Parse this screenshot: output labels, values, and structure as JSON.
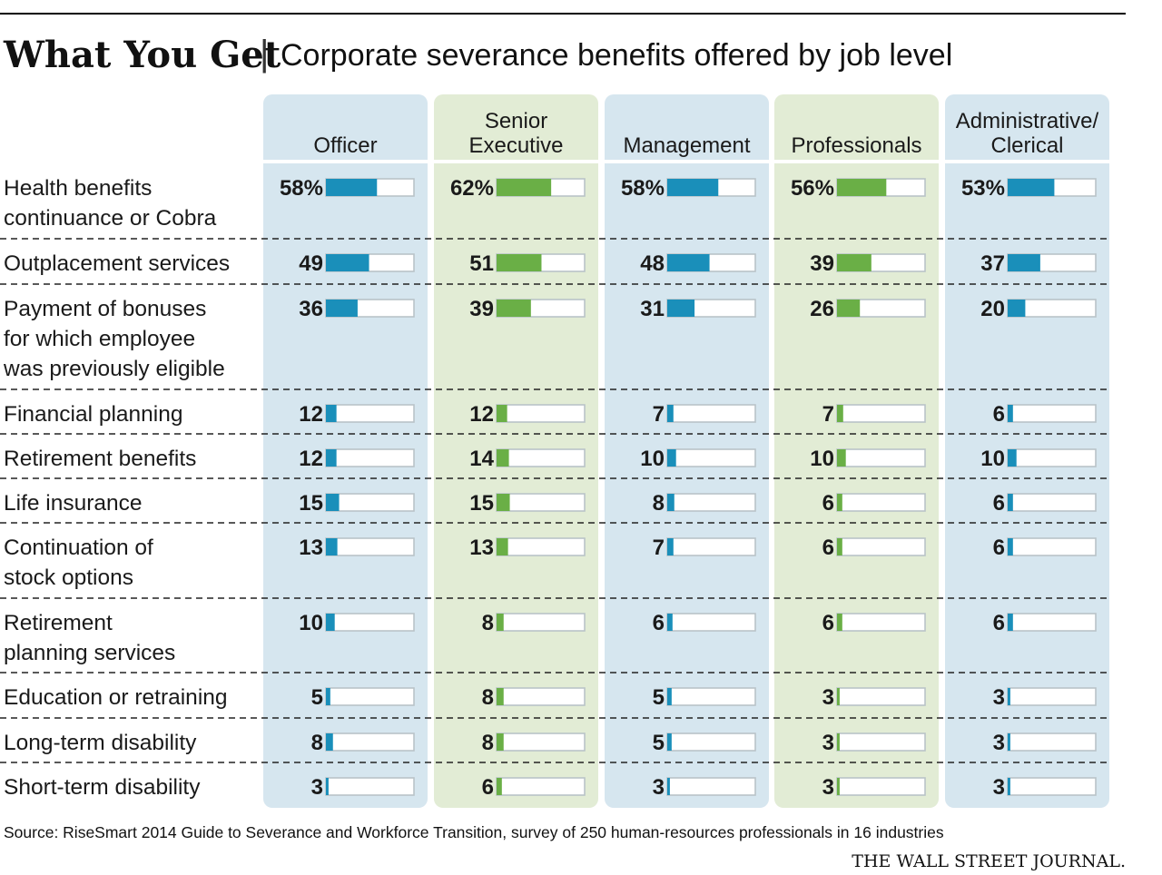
{
  "header": {
    "title": "What You Get",
    "separator": "|",
    "subtitle": "Corporate severance benefits offered by job level"
  },
  "chart_data": {
    "type": "table",
    "title": "What You Get",
    "subtitle": "Corporate severance benefits offered by job level",
    "unit": "%",
    "value_range": [
      0,
      100
    ],
    "columns": [
      {
        "name_lines": [
          "Officer"
        ],
        "color": "#1a8fba",
        "background": "#d6e6ef"
      },
      {
        "name_lines": [
          "Senior",
          "Executive"
        ],
        "color": "#6aaf46",
        "background": "#e2ecd5"
      },
      {
        "name_lines": [
          "Management"
        ],
        "color": "#1a8fba",
        "background": "#d6e6ef"
      },
      {
        "name_lines": [
          "Professionals"
        ],
        "color": "#6aaf46",
        "background": "#e2ecd5"
      },
      {
        "name_lines": [
          "Administrative/",
          "Clerical"
        ],
        "color": "#1a8fba",
        "background": "#d6e6ef"
      }
    ],
    "rows": [
      {
        "label_lines": [
          "Health benefits",
          "continuance or Cobra"
        ],
        "values": [
          58,
          62,
          58,
          56,
          53
        ],
        "value_labels": [
          "58%",
          "62%",
          "58%",
          "56%",
          "53%"
        ]
      },
      {
        "label_lines": [
          "Outplacement services"
        ],
        "values": [
          49,
          51,
          48,
          39,
          37
        ],
        "value_labels": [
          "49",
          "51",
          "48",
          "39",
          "37"
        ]
      },
      {
        "label_lines": [
          "Payment of bonuses",
          "for which employee",
          "was previously eligible"
        ],
        "values": [
          36,
          39,
          31,
          26,
          20
        ],
        "value_labels": [
          "36",
          "39",
          "31",
          "26",
          "20"
        ]
      },
      {
        "label_lines": [
          "Financial planning"
        ],
        "values": [
          12,
          12,
          7,
          7,
          6
        ],
        "value_labels": [
          "12",
          "12",
          "7",
          "7",
          "6"
        ]
      },
      {
        "label_lines": [
          "Retirement benefits"
        ],
        "values": [
          12,
          14,
          10,
          10,
          10
        ],
        "value_labels": [
          "12",
          "14",
          "10",
          "10",
          "10"
        ]
      },
      {
        "label_lines": [
          "Life insurance"
        ],
        "values": [
          15,
          15,
          8,
          6,
          6
        ],
        "value_labels": [
          "15",
          "15",
          "8",
          "6",
          "6"
        ]
      },
      {
        "label_lines": [
          "Continuation of",
          "stock options"
        ],
        "values": [
          13,
          13,
          7,
          6,
          6
        ],
        "value_labels": [
          "13",
          "13",
          "7",
          "6",
          "6"
        ]
      },
      {
        "label_lines": [
          "Retirement",
          "planning services"
        ],
        "values": [
          10,
          8,
          6,
          6,
          6
        ],
        "value_labels": [
          "10",
          "8",
          "6",
          "6",
          "6"
        ]
      },
      {
        "label_lines": [
          "Education or retraining"
        ],
        "values": [
          5,
          8,
          5,
          3,
          3
        ],
        "value_labels": [
          "5",
          "8",
          "5",
          "3",
          "3"
        ]
      },
      {
        "label_lines": [
          "Long-term disability"
        ],
        "values": [
          8,
          8,
          5,
          3,
          3
        ],
        "value_labels": [
          "8",
          "8",
          "5",
          "3",
          "3"
        ]
      },
      {
        "label_lines": [
          "Short-term disability"
        ],
        "values": [
          3,
          6,
          3,
          3,
          3
        ],
        "value_labels": [
          "3",
          "6",
          "3",
          "3",
          "3"
        ]
      }
    ]
  },
  "footer": {
    "source": "Source: RiseSmart 2014 Guide to Severance and Workforce Transition, survey of 250 human-resources professionals in 16 industries",
    "publisher": "THE WALL STREET JOURNAL."
  },
  "colors": {
    "text": "#1a1a1a",
    "rule": "#000000",
    "bar_track_border": "#b9c3c8",
    "dash": "#222222"
  }
}
